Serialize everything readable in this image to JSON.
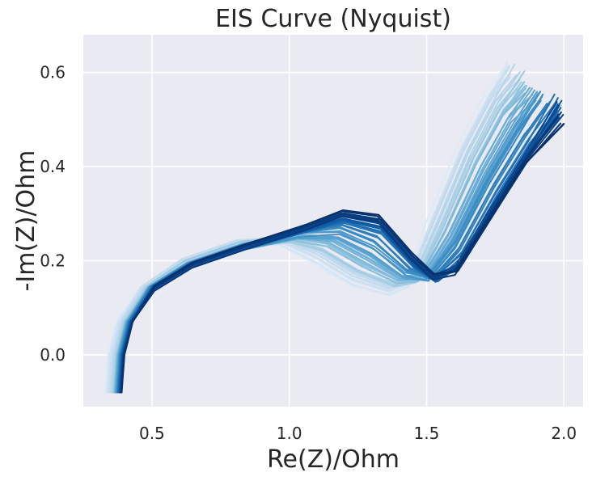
{
  "chart_data": {
    "type": "line",
    "title": "EIS Curve (Nyquist)",
    "xlabel": "Re(Z)/Ohm",
    "ylabel": "-Im(Z)/Ohm",
    "xlim": [
      0.25,
      2.07
    ],
    "ylim": [
      -0.11,
      0.68
    ],
    "xticks": [
      0.5,
      1.0,
      1.5,
      2.0
    ],
    "xtick_labels": [
      "0.5",
      "1.0",
      "1.5",
      "2.0"
    ],
    "yticks": [
      0.0,
      0.2,
      0.4,
      0.6
    ],
    "ytick_labels": [
      "0.0",
      "0.2",
      "0.4",
      "0.6"
    ],
    "grid": true,
    "legend": "none",
    "background": "#eaeaf2",
    "colormap": "Blues",
    "colors": {
      "light": "#deebf7",
      "mid": "#4292c6",
      "dark": "#08306b",
      "grid": "#ffffff"
    },
    "series_count": 60,
    "series": [
      {
        "x": [
          0.33,
          0.34,
          0.37,
          0.45,
          0.6,
          0.8,
          0.95,
          1.08,
          1.22,
          1.35,
          1.42,
          1.5,
          1.62,
          1.72,
          1.78
        ],
        "y": [
          -0.08,
          0.0,
          0.07,
          0.14,
          0.2,
          0.24,
          0.24,
          0.2,
          0.15,
          0.13,
          0.15,
          0.28,
          0.45,
          0.56,
          0.61
        ]
      },
      {
        "x": [
          0.36,
          0.37,
          0.4,
          0.48,
          0.62,
          0.82,
          1.0,
          1.12,
          1.25,
          1.38,
          1.46,
          1.55,
          1.66,
          1.76,
          1.84
        ],
        "y": [
          -0.08,
          0.0,
          0.07,
          0.14,
          0.195,
          0.235,
          0.245,
          0.225,
          0.18,
          0.15,
          0.16,
          0.27,
          0.42,
          0.53,
          0.59
        ]
      },
      {
        "x": [
          0.37,
          0.38,
          0.41,
          0.49,
          0.63,
          0.83,
          1.03,
          1.18,
          1.3,
          1.42,
          1.5,
          1.6,
          1.72,
          1.82,
          1.9
        ],
        "y": [
          -0.08,
          0.0,
          0.07,
          0.14,
          0.19,
          0.23,
          0.255,
          0.255,
          0.22,
          0.17,
          0.165,
          0.25,
          0.39,
          0.49,
          0.55
        ]
      },
      {
        "x": [
          0.38,
          0.39,
          0.42,
          0.5,
          0.64,
          0.84,
          1.05,
          1.2,
          1.34,
          1.46,
          1.54,
          1.63,
          1.76,
          1.88,
          1.98
        ],
        "y": [
          -0.08,
          0.0,
          0.07,
          0.14,
          0.19,
          0.23,
          0.265,
          0.29,
          0.27,
          0.19,
          0.16,
          0.2,
          0.33,
          0.44,
          0.53
        ]
      },
      {
        "x": [
          0.39,
          0.4,
          0.43,
          0.51,
          0.65,
          0.85,
          1.06,
          1.19,
          1.32,
          1.44,
          1.52,
          1.6,
          1.72,
          1.85,
          1.99
        ],
        "y": [
          -0.08,
          0.0,
          0.07,
          0.14,
          0.19,
          0.23,
          0.27,
          0.3,
          0.29,
          0.21,
          0.165,
          0.17,
          0.28,
          0.4,
          0.5
        ]
      }
    ]
  }
}
